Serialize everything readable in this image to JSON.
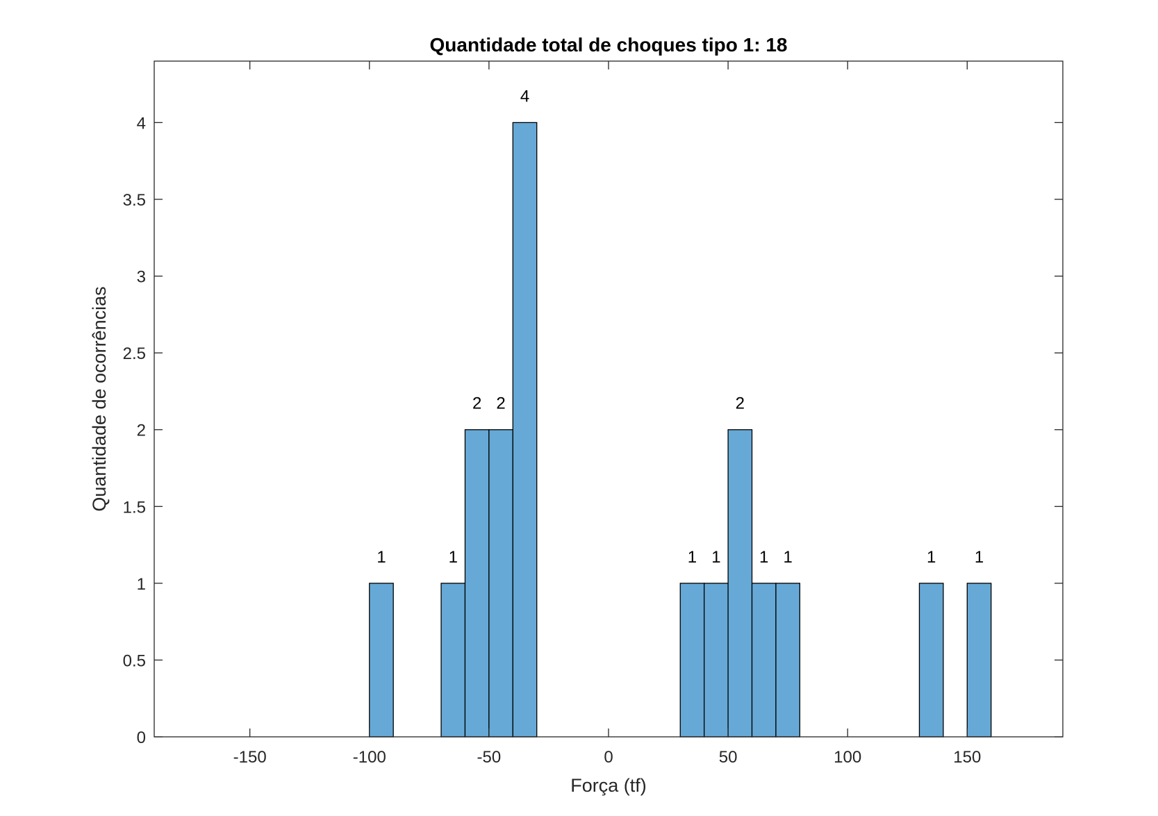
{
  "chart_data": {
    "type": "bar",
    "title": "Quantidade total de choques tipo 1: 18",
    "xlabel": "Força (tf)",
    "ylabel": "Quantidade de ocorrências",
    "xlim": [
      -190,
      190
    ],
    "ylim": [
      0,
      4.4
    ],
    "xticks": [
      -150,
      -100,
      -50,
      0,
      50,
      100,
      150
    ],
    "xtick_labels": [
      "-150",
      "-100",
      "-50",
      "0",
      "50",
      "100",
      "150"
    ],
    "yticks": [
      0,
      0.5,
      1,
      1.5,
      2,
      2.5,
      3,
      3.5,
      4
    ],
    "ytick_labels": [
      "0",
      "0.5",
      "1",
      "1.5",
      "2",
      "2.5",
      "3",
      "3.5",
      "4"
    ],
    "bin_width": 10,
    "bins": [
      {
        "start": -100,
        "end": -90,
        "count": 1,
        "label": "1"
      },
      {
        "start": -70,
        "end": -60,
        "count": 1,
        "label": "1"
      },
      {
        "start": -60,
        "end": -50,
        "count": 2,
        "label": "2"
      },
      {
        "start": -50,
        "end": -40,
        "count": 2,
        "label": "2"
      },
      {
        "start": -40,
        "end": -30,
        "count": 4,
        "label": "4"
      },
      {
        "start": 30,
        "end": 40,
        "count": 1,
        "label": "1"
      },
      {
        "start": 40,
        "end": 50,
        "count": 1,
        "label": "1"
      },
      {
        "start": 50,
        "end": 60,
        "count": 2,
        "label": "2"
      },
      {
        "start": 60,
        "end": 70,
        "count": 1,
        "label": "1"
      },
      {
        "start": 70,
        "end": 80,
        "count": 1,
        "label": "1"
      },
      {
        "start": 130,
        "end": 140,
        "count": 1,
        "label": "1"
      },
      {
        "start": 150,
        "end": 160,
        "count": 1,
        "label": "1"
      }
    ],
    "grid": false,
    "box": true,
    "bar_color": "#66a9d6",
    "bar_edge_color": "#000000"
  }
}
